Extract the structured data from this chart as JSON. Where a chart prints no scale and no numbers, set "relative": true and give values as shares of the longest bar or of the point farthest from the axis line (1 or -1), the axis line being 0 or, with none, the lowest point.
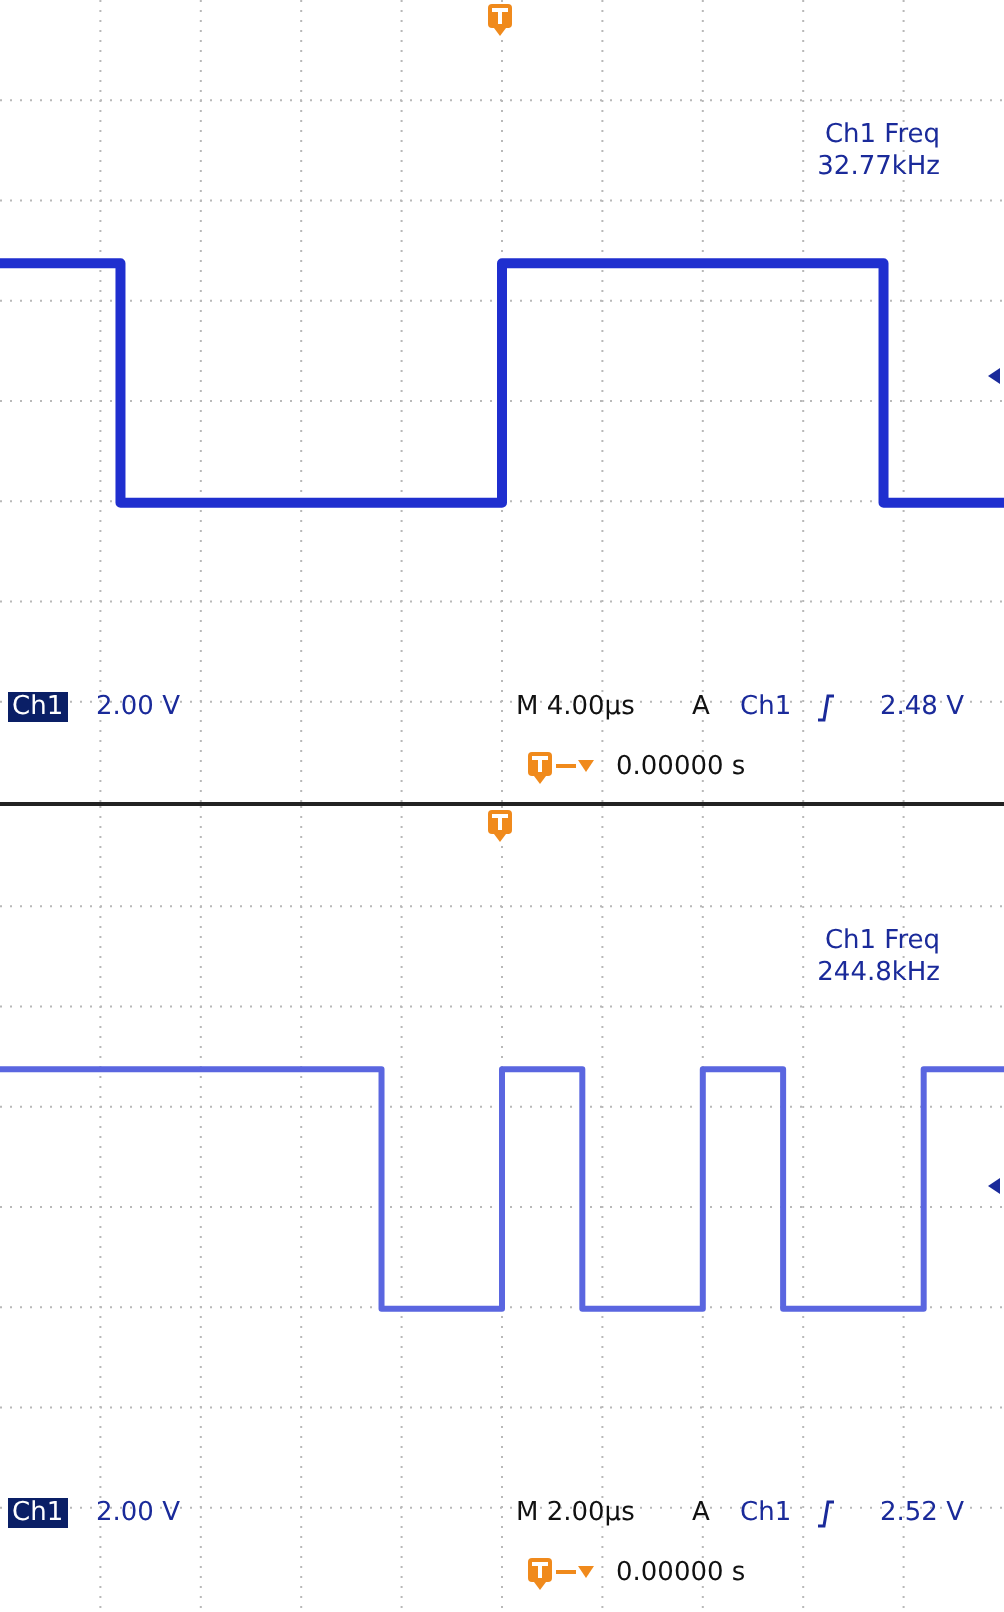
{
  "chart_data": [
    {
      "type": "step",
      "relative": true,
      "grid": true,
      "tick_labels": false,
      "categories": [
        null,
        null,
        null,
        null,
        null,
        null,
        null,
        null,
        null,
        null,
        null,
        null,
        null,
        null,
        null,
        null,
        null,
        null,
        null,
        null,
        null,
        null,
        null,
        null,
        null,
        null,
        null,
        null,
        null,
        null,
        null,
        null,
        null,
        null,
        null,
        null,
        null,
        null,
        null,
        null,
        null,
        null,
        null,
        null,
        null,
        null,
        null,
        null,
        null,
        null,
        null
      ],
      "series": [
        {
          "color": "#1f2fcf",
          "values": [
            1,
            1,
            1,
            1,
            1,
            1,
            0,
            0,
            0,
            0,
            0,
            0,
            0,
            0,
            0,
            0,
            0,
            0,
            0,
            0,
            0,
            0,
            0,
            0,
            0,
            1,
            1,
            1,
            1,
            1,
            1,
            1,
            1,
            1,
            1,
            1,
            1,
            1,
            1,
            1,
            1,
            1,
            1,
            1,
            0,
            0,
            0,
            0,
            0,
            0,
            0
          ]
        }
      ],
      "annotations": [
        "Ch1 Freq",
        "32.77kHz",
        "Ch1",
        "2.00 V",
        "M 4.00µs",
        "A",
        "Ch1",
        "2.48 V",
        "0.00000 s"
      ]
    },
    {
      "type": "step",
      "relative": true,
      "grid": true,
      "tick_labels": false,
      "categories": [
        null,
        null,
        null,
        null,
        null,
        null,
        null,
        null,
        null,
        null,
        null,
        null,
        null,
        null,
        null,
        null,
        null,
        null,
        null,
        null,
        null,
        null,
        null,
        null,
        null,
        null,
        null,
        null,
        null,
        null,
        null,
        null,
        null,
        null,
        null,
        null,
        null,
        null,
        null,
        null,
        null,
        null,
        null,
        null,
        null,
        null,
        null,
        null,
        null,
        null,
        null
      ],
      "series": [
        {
          "color": "#5a66e0",
          "values": [
            1,
            1,
            1,
            1,
            1,
            1,
            1,
            1,
            1,
            1,
            1,
            1,
            1,
            1,
            1,
            1,
            1,
            1,
            1,
            0,
            0,
            0,
            0,
            0,
            0,
            1,
            1,
            1,
            1,
            0,
            0,
            0,
            0,
            0,
            0,
            1,
            1,
            1,
            1,
            0,
            0,
            0,
            0,
            0,
            0,
            0,
            1,
            1,
            1,
            1,
            1
          ]
        }
      ],
      "annotations": [
        "Ch1 Freq",
        "244.8kHz",
        "Ch1",
        "2.00 V",
        "M 2.00µs",
        "A",
        "Ch1",
        "2.52 V",
        "0.00000 s"
      ]
    }
  ]
}
